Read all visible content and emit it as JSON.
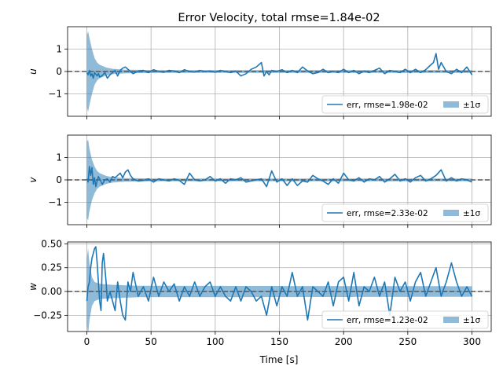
{
  "chart_data": {
    "type": "line",
    "title": "Error Velocity, total rmse=1.84e-02",
    "xlabel": "Time [s]",
    "xlim": [
      -15,
      315
    ],
    "xticks": [
      0,
      50,
      100,
      150,
      200,
      250,
      300
    ],
    "grid": true,
    "legend_placement": "lower right",
    "colors": {
      "err": "#1f77b4",
      "band": "#1f77b4",
      "zero": "#555555"
    },
    "subplots": [
      {
        "ylabel": "u",
        "ylim": [
          -2.0,
          2.0
        ],
        "yticks": [
          -1,
          0,
          1
        ],
        "legend": [
          "err, rmse=1.98e-02",
          "±1σ"
        ],
        "band_sigma": [
          [
            0,
            1.6
          ],
          [
            1,
            1.8
          ],
          [
            2,
            1.5
          ],
          [
            4,
            1.0
          ],
          [
            6,
            0.6
          ],
          [
            8,
            0.4
          ],
          [
            10,
            0.3
          ],
          [
            15,
            0.18
          ],
          [
            20,
            0.12
          ],
          [
            30,
            0.08
          ],
          [
            60,
            0.06
          ],
          [
            300,
            0.06
          ]
        ],
        "err": {
          "x": [
            0,
            1,
            2,
            3,
            4,
            5,
            6,
            7,
            8,
            9,
            10,
            12,
            14,
            16,
            18,
            20,
            22,
            24,
            26,
            28,
            30,
            33,
            36,
            40,
            44,
            48,
            52,
            56,
            60,
            64,
            68,
            72,
            76,
            80,
            84,
            88,
            92,
            96,
            100,
            104,
            108,
            112,
            116,
            120,
            124,
            128,
            132,
            136,
            138,
            140,
            142,
            144,
            148,
            152,
            156,
            160,
            164,
            168,
            172,
            176,
            180,
            184,
            188,
            192,
            196,
            200,
            204,
            208,
            212,
            216,
            220,
            224,
            228,
            232,
            236,
            240,
            244,
            248,
            252,
            256,
            260,
            264,
            268,
            270,
            272,
            274,
            276,
            280,
            284,
            288,
            292,
            296,
            300
          ],
          "y": [
            -0.05,
            -0.15,
            0.05,
            -0.2,
            -0.1,
            -0.3,
            -0.05,
            -0.12,
            -0.2,
            -0.08,
            -0.25,
            -0.18,
            -0.05,
            -0.3,
            -0.15,
            -0.05,
            0.05,
            -0.2,
            0.05,
            0.15,
            0.2,
            0.05,
            -0.1,
            0.02,
            0.05,
            -0.05,
            0.08,
            0.0,
            -0.03,
            0.05,
            0.02,
            -0.05,
            0.08,
            0.0,
            -0.02,
            0.05,
            0.0,
            0.02,
            -0.03,
            0.05,
            0.0,
            -0.05,
            0.02,
            -0.2,
            -0.1,
            0.1,
            0.2,
            0.4,
            -0.2,
            0.0,
            -0.15,
            0.05,
            0.0,
            0.08,
            -0.05,
            0.05,
            -0.05,
            0.2,
            0.02,
            -0.1,
            -0.05,
            0.1,
            -0.05,
            0.0,
            -0.05,
            0.1,
            -0.05,
            0.05,
            -0.1,
            0.02,
            -0.05,
            0.05,
            0.15,
            -0.1,
            0.05,
            0.0,
            -0.05,
            0.1,
            -0.05,
            0.1,
            -0.05,
            0.08,
            0.3,
            0.4,
            0.8,
            0.1,
            0.4,
            0.0,
            -0.1,
            0.1,
            -0.05,
            0.2,
            -0.15
          ]
        }
      },
      {
        "ylabel": "v",
        "ylim": [
          -2.0,
          2.0
        ],
        "yticks": [
          -1,
          0,
          1
        ],
        "legend": [
          "err, rmse=2.33e-02",
          "±1σ"
        ],
        "band_sigma": [
          [
            0,
            1.7
          ],
          [
            1,
            1.8
          ],
          [
            2,
            1.4
          ],
          [
            4,
            0.9
          ],
          [
            6,
            0.6
          ],
          [
            8,
            0.4
          ],
          [
            10,
            0.3
          ],
          [
            15,
            0.18
          ],
          [
            20,
            0.12
          ],
          [
            30,
            0.08
          ],
          [
            60,
            0.06
          ],
          [
            300,
            0.06
          ]
        ],
        "err": {
          "x": [
            0,
            1,
            2,
            3,
            4,
            5,
            6,
            7,
            8,
            9,
            10,
            12,
            14,
            16,
            18,
            20,
            22,
            24,
            26,
            28,
            30,
            32,
            34,
            36,
            40,
            44,
            48,
            52,
            56,
            60,
            64,
            68,
            72,
            76,
            80,
            84,
            88,
            92,
            96,
            100,
            104,
            108,
            112,
            116,
            120,
            124,
            128,
            132,
            136,
            140,
            144,
            148,
            152,
            156,
            160,
            164,
            168,
            172,
            176,
            180,
            184,
            188,
            192,
            196,
            200,
            204,
            208,
            212,
            216,
            220,
            224,
            228,
            232,
            236,
            240,
            244,
            248,
            252,
            256,
            260,
            264,
            268,
            272,
            276,
            280,
            284,
            288,
            292,
            296,
            300
          ],
          "y": [
            0.05,
            -0.1,
            0.6,
            0.2,
            0.55,
            -0.2,
            0.1,
            -0.3,
            -0.05,
            0.15,
            0.05,
            -0.2,
            0.0,
            0.05,
            -0.1,
            0.15,
            0.1,
            0.2,
            0.3,
            0.1,
            0.35,
            0.45,
            0.2,
            0.05,
            -0.05,
            -0.02,
            0.05,
            -0.1,
            0.05,
            0.0,
            -0.05,
            0.05,
            -0.02,
            -0.2,
            0.3,
            0.0,
            -0.05,
            0.0,
            0.15,
            -0.05,
            0.05,
            -0.15,
            0.05,
            0.0,
            0.1,
            -0.1,
            -0.05,
            0.0,
            0.05,
            -0.3,
            0.4,
            -0.1,
            0.05,
            -0.25,
            0.05,
            -0.25,
            -0.05,
            -0.1,
            0.2,
            0.05,
            -0.05,
            -0.2,
            0.05,
            -0.15,
            0.3,
            0.0,
            -0.05,
            0.1,
            -0.1,
            0.05,
            0.0,
            0.15,
            -0.1,
            0.05,
            0.25,
            -0.05,
            0.05,
            -0.1,
            0.1,
            0.2,
            -0.05,
            0.05,
            0.2,
            0.45,
            -0.05,
            0.1,
            -0.05,
            0.05,
            0.0,
            -0.1
          ]
        }
      },
      {
        "ylabel": "w",
        "ylim": [
          -0.42,
          0.52
        ],
        "yticks": [
          -0.25,
          0.0,
          0.25,
          0.5
        ],
        "legend": [
          "err, rmse=1.23e-02",
          "±1σ"
        ],
        "band_sigma": [
          [
            0,
            0.35
          ],
          [
            1,
            0.45
          ],
          [
            2,
            0.3
          ],
          [
            4,
            0.15
          ],
          [
            6,
            0.1
          ],
          [
            10,
            0.08
          ],
          [
            20,
            0.07
          ],
          [
            40,
            0.06
          ],
          [
            300,
            0.055
          ]
        ],
        "err": {
          "x": [
            0,
            1,
            2,
            3,
            4,
            5,
            6,
            7,
            8,
            9,
            10,
            11,
            12,
            13,
            14,
            15,
            16,
            18,
            20,
            22,
            24,
            26,
            28,
            30,
            32,
            34,
            36,
            40,
            44,
            48,
            52,
            56,
            60,
            64,
            68,
            72,
            76,
            80,
            84,
            88,
            92,
            96,
            100,
            104,
            108,
            112,
            116,
            120,
            124,
            128,
            132,
            136,
            140,
            144,
            148,
            152,
            156,
            160,
            164,
            168,
            172,
            176,
            180,
            184,
            188,
            192,
            196,
            200,
            204,
            208,
            212,
            216,
            220,
            224,
            228,
            232,
            236,
            240,
            244,
            248,
            252,
            256,
            260,
            264,
            268,
            272,
            276,
            280,
            284,
            288,
            292,
            296,
            300
          ],
          "y": [
            -0.1,
            0.05,
            0.1,
            0.25,
            0.35,
            0.4,
            0.45,
            0.47,
            0.3,
            0.1,
            -0.1,
            -0.2,
            0.3,
            0.4,
            0.25,
            0.1,
            -0.1,
            0.0,
            -0.1,
            -0.2,
            0.1,
            -0.1,
            -0.25,
            -0.3,
            0.1,
            0.0,
            0.2,
            -0.05,
            0.05,
            -0.1,
            0.15,
            -0.05,
            0.1,
            0.0,
            0.08,
            -0.1,
            0.05,
            -0.05,
            0.1,
            -0.05,
            0.05,
            0.1,
            -0.05,
            0.05,
            -0.05,
            -0.1,
            0.05,
            -0.1,
            0.05,
            0.0,
            -0.1,
            -0.05,
            -0.25,
            0.05,
            -0.15,
            0.05,
            -0.05,
            0.2,
            -0.05,
            0.05,
            -0.3,
            0.05,
            0.0,
            -0.05,
            0.1,
            -0.15,
            0.1,
            0.15,
            -0.1,
            0.2,
            -0.15,
            0.05,
            0.0,
            0.15,
            -0.05,
            0.1,
            -0.25,
            0.15,
            0.0,
            0.1,
            -0.1,
            0.1,
            0.2,
            -0.05,
            0.1,
            0.25,
            -0.05,
            0.1,
            0.3,
            0.1,
            -0.05,
            0.05,
            -0.05
          ]
        }
      }
    ]
  }
}
